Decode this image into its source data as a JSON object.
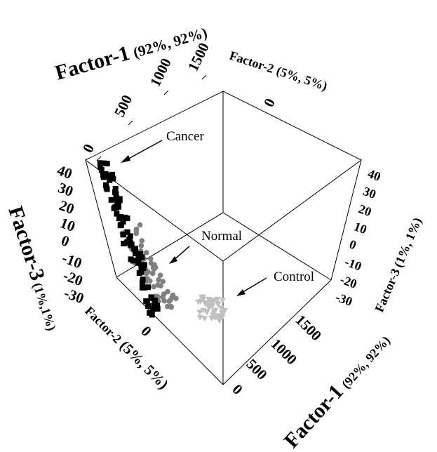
{
  "chart_data": {
    "type": "scatter",
    "projection": "3d",
    "axes": {
      "factor1": {
        "label_main": "Factor-1",
        "label_pct": "(92%, 92%)",
        "ticks": [
          "0",
          "500",
          "1000",
          "1500"
        ]
      },
      "factor2": {
        "label_main": "Factor-2",
        "label_pct": "(5%, 5%)",
        "ticks": [
          "0"
        ]
      },
      "factor3": {
        "label_main": "Factor-3",
        "label_pct": "(1%,1%)",
        "label_pct_right": "(1%, 1%)",
        "ticks": [
          "40",
          "30",
          "20",
          "10",
          "0",
          "-10",
          "-20",
          "-30"
        ]
      }
    },
    "groups": [
      {
        "name": "Cancer",
        "marker": "square",
        "color": "#000000"
      },
      {
        "name": "Normal",
        "marker": "circle",
        "color": "#808080"
      },
      {
        "name": "Control",
        "marker": "triangle",
        "color": "#c0c0c0"
      }
    ],
    "annotations": [
      "Cancer",
      "Normal",
      "Control"
    ]
  }
}
